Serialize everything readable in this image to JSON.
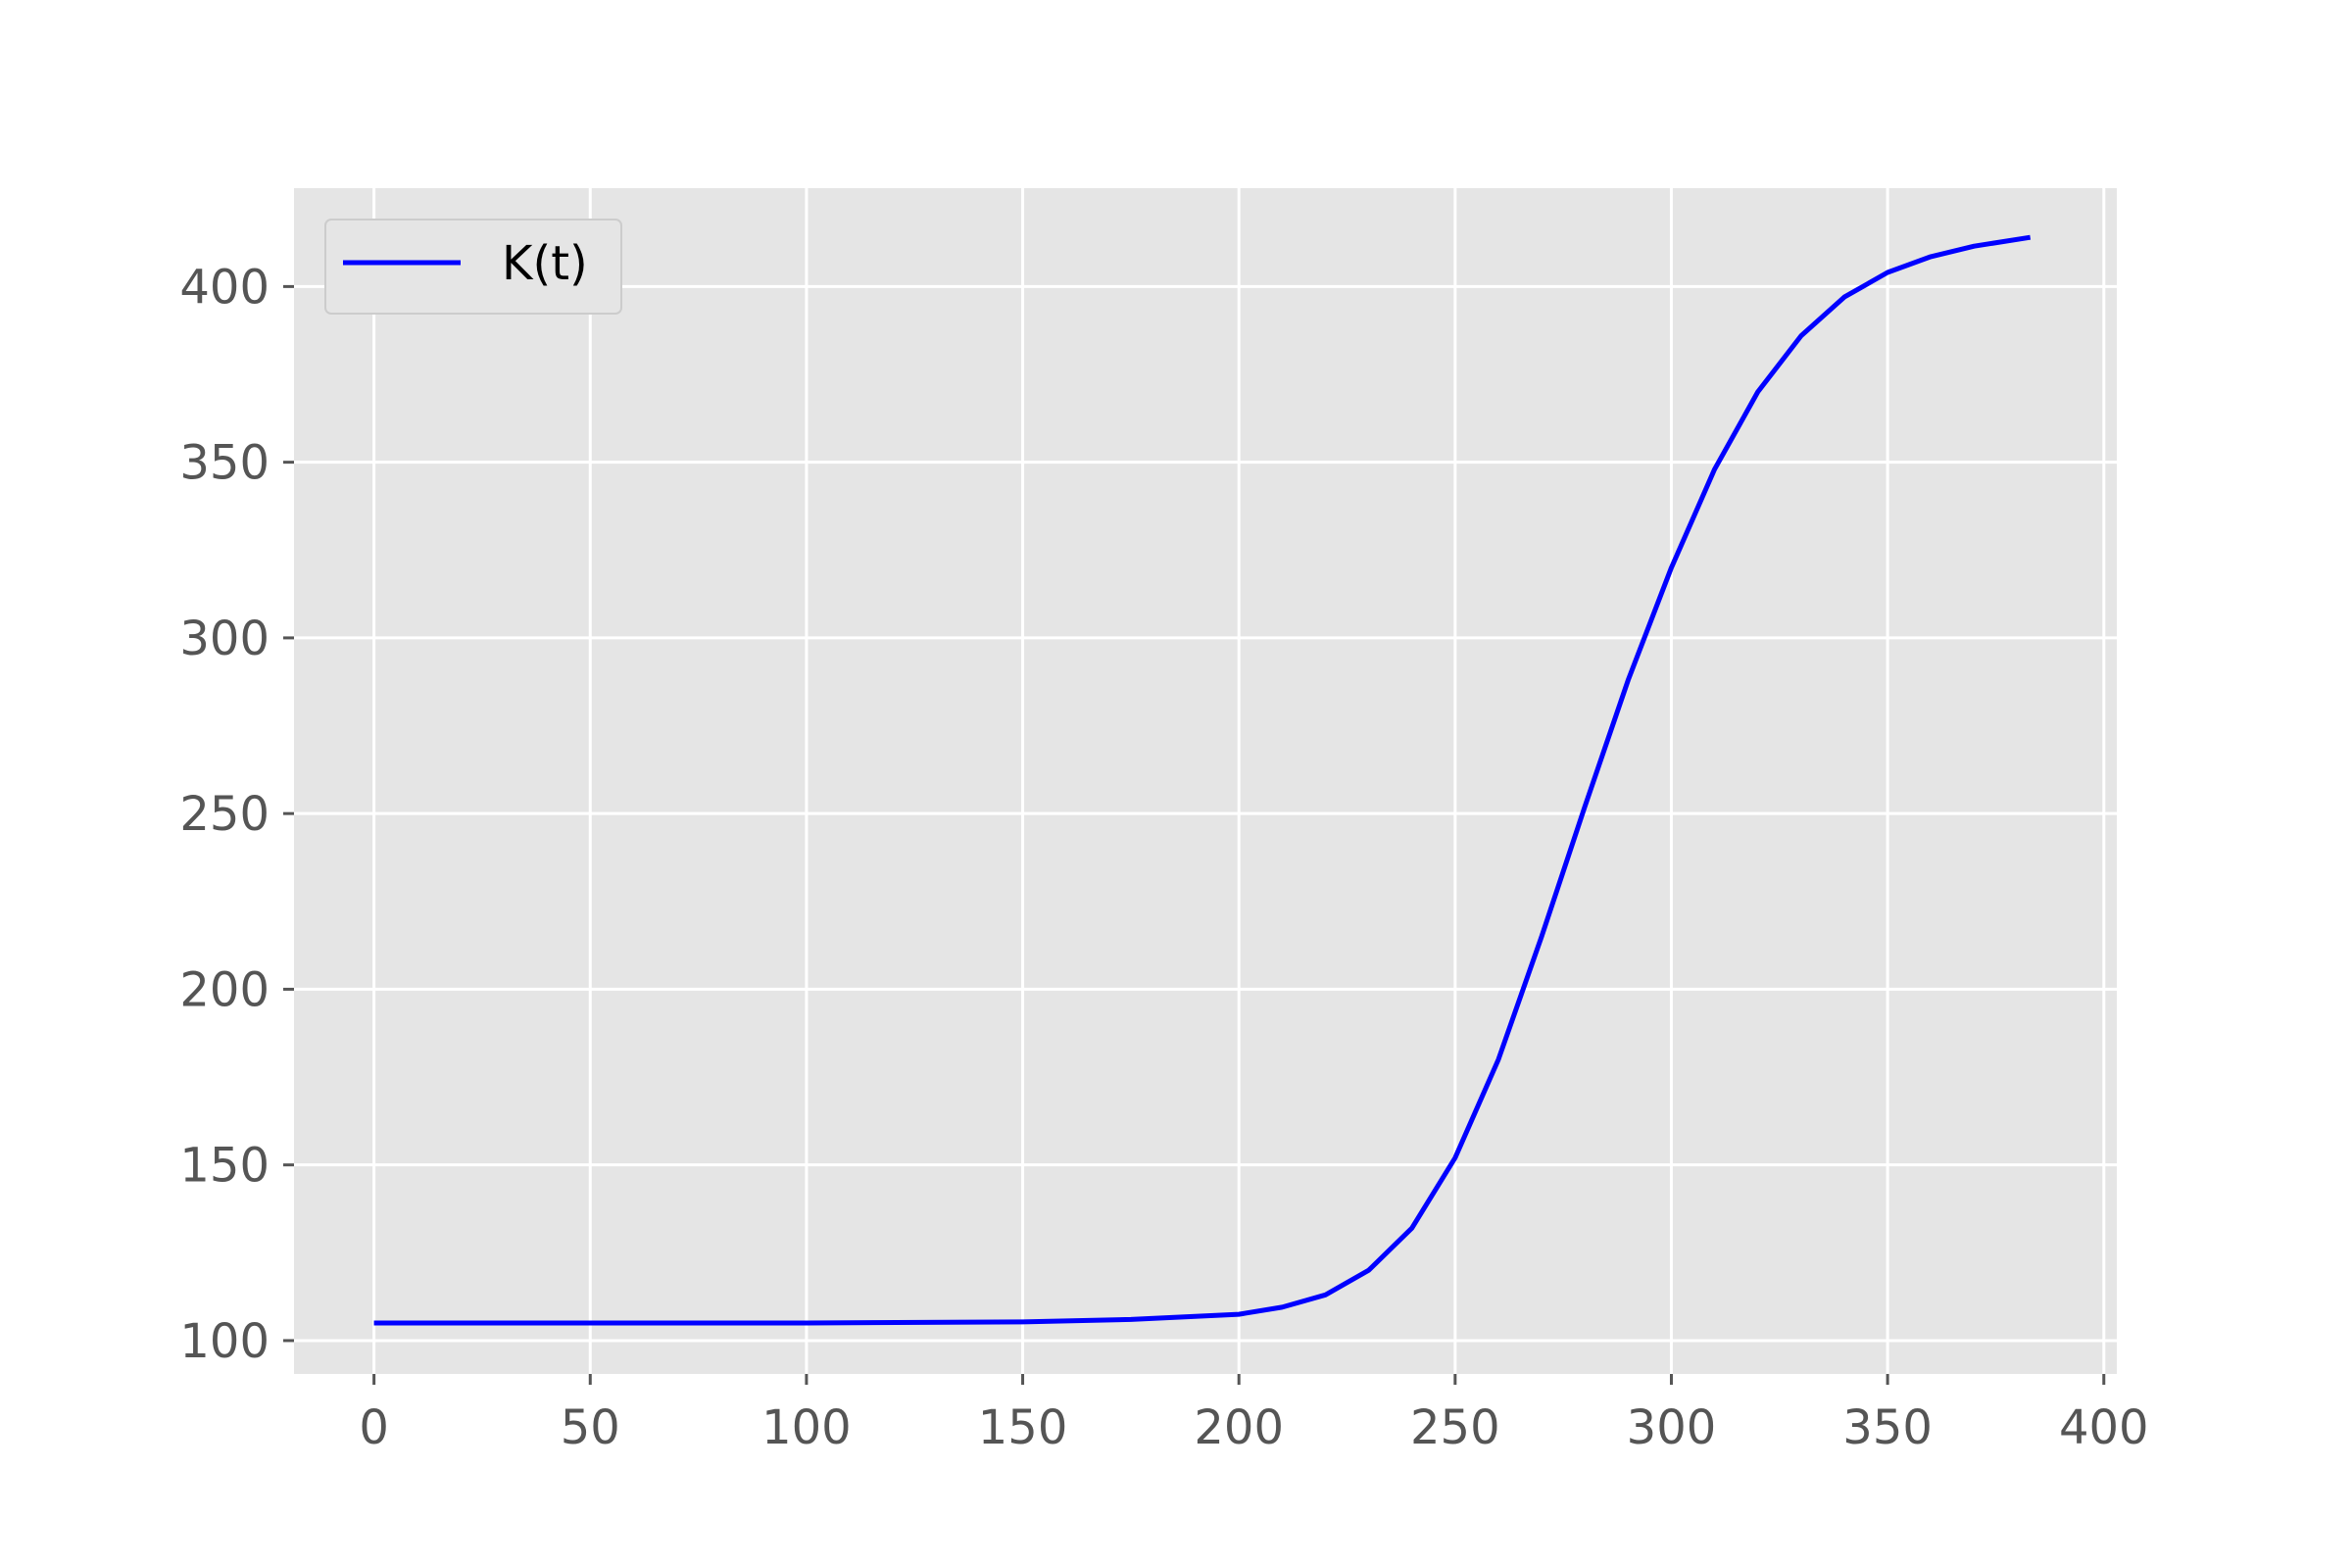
{
  "chart_data": {
    "type": "line",
    "title": "",
    "xlabel": "",
    "ylabel": "",
    "xlim": [
      -18.5,
      403
    ],
    "ylim": [
      90.5,
      428
    ],
    "grid": true,
    "legend": {
      "placement": "top-left",
      "entries": [
        "K(t)"
      ]
    },
    "x_ticks": [
      0,
      50,
      100,
      150,
      200,
      250,
      300,
      350,
      400
    ],
    "x_tick_labels": [
      "0",
      "50",
      "100",
      "150",
      "200",
      "250",
      "300",
      "350",
      "400"
    ],
    "y_ticks": [
      100,
      150,
      200,
      250,
      300,
      350,
      400
    ],
    "y_tick_labels": [
      "100",
      "150",
      "200",
      "250",
      "300",
      "350",
      "400"
    ],
    "series": [
      {
        "name": "K(t)",
        "color": "#0000ff",
        "x": [
          0,
          50,
          100,
          150,
          175,
          200,
          210,
          220,
          230,
          240,
          250,
          260,
          270,
          280,
          290,
          300,
          310,
          320,
          330,
          340,
          350,
          360,
          370,
          383
        ],
        "y": [
          105,
          105,
          105,
          105.3,
          106,
          107.5,
          109.5,
          113,
          120,
          132,
          152,
          180,
          215,
          252,
          288,
          320,
          348,
          370,
          386,
          397,
          404,
          408.5,
          411.5,
          414
        ]
      }
    ]
  },
  "colors": {
    "plot_background": "#e5e5e5",
    "grid": "#ffffff",
    "tick_text": "#555555",
    "line": "#0000ff"
  }
}
